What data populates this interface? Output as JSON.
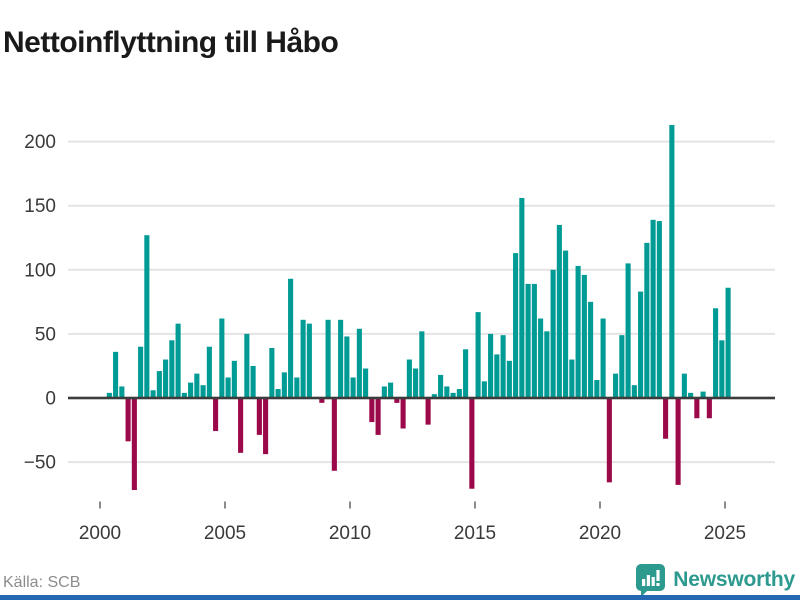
{
  "title": "Nettoinflyttning till Håbo",
  "source": "Källa: SCB",
  "brand": {
    "name": "Newsworthy",
    "icon": "bar-chart-pin-icon"
  },
  "colors": {
    "positive_bar": "#009B94",
    "negative_bar": "#9B094A",
    "grid": "#E4E4E4",
    "zero_axis": "#3C3C3C",
    "tick_label": "#3A3A3A",
    "tick_mark": "#8A8A8A",
    "title_text": "#1A1A1A",
    "source_text": "#8C8C8C",
    "brand_teal": "#2D9A8F",
    "bottom_border": "#2468B2",
    "background": "#FFFFFF"
  },
  "chart_data": {
    "type": "bar",
    "title": "Nettoinflyttning till Håbo",
    "xlabel": "",
    "ylabel": "",
    "grid": "horizontal",
    "legend": "none",
    "yticks": [
      200,
      150,
      100,
      50,
      0,
      -50
    ],
    "xticks": [
      2000,
      2005,
      2010,
      2015,
      2020,
      2025
    ],
    "ylim": [
      -85,
      225
    ],
    "xlim_years": [
      1998.6,
      2027
    ],
    "x": [
      "2000K2",
      "2000K3",
      "2000K4",
      "2001K1",
      "2001K2",
      "2001K3",
      "2001K4",
      "2002K1",
      "2002K2",
      "2002K3",
      "2002K4",
      "2003K1",
      "2003K2",
      "2003K3",
      "2003K4",
      "2004K1",
      "2004K2",
      "2004K3",
      "2004K4",
      "2005K1",
      "2005K2",
      "2005K3",
      "2005K4",
      "2006K1",
      "2006K2",
      "2006K3",
      "2006K4",
      "2007K1",
      "2007K2",
      "2007K3",
      "2007K4",
      "2008K1",
      "2008K2",
      "2008K3",
      "2008K4",
      "2009K1",
      "2009K2",
      "2009K3",
      "2009K4",
      "2010K1",
      "2010K2",
      "2010K3",
      "2010K4",
      "2011K1",
      "2011K2",
      "2011K3",
      "2011K4",
      "2012K1",
      "2012K2",
      "2012K3",
      "2012K4",
      "2013K1",
      "2013K2",
      "2013K3",
      "2013K4",
      "2014K1",
      "2014K2",
      "2014K3",
      "2014K4",
      "2015K1",
      "2015K2",
      "2015K3",
      "2015K4",
      "2016K1",
      "2016K2",
      "2016K3",
      "2016K4",
      "2017K1",
      "2017K2",
      "2017K3",
      "2017K4",
      "2018K1",
      "2018K2",
      "2018K3",
      "2018K4",
      "2019K1",
      "2019K2",
      "2019K3",
      "2019K4",
      "2020K1",
      "2020K2",
      "2020K3",
      "2020K4",
      "2021K1",
      "2021K2",
      "2021K3",
      "2021K4",
      "2022K1",
      "2022K2",
      "2022K3",
      "2022K4",
      "2023K1",
      "2023K2",
      "2023K3",
      "2023K4",
      "2024K1",
      "2024K2",
      "2024K3",
      "2024K4",
      "2025K1"
    ],
    "values": [
      4,
      36,
      9,
      -33,
      -71,
      40,
      127,
      6,
      21,
      30,
      45,
      58,
      4,
      12,
      19,
      10,
      40,
      -25,
      62,
      16,
      29,
      -42,
      50,
      25,
      -28,
      -43,
      39,
      7,
      20,
      93,
      16,
      61,
      58,
      0,
      -3,
      61,
      -56,
      61,
      48,
      16,
      54,
      23,
      -18,
      -28,
      9,
      12,
      -3,
      -23,
      30,
      23,
      52,
      -20,
      3,
      18,
      9,
      4,
      7,
      38,
      -70,
      67,
      13,
      50,
      34,
      49,
      29,
      113,
      156,
      89,
      89,
      62,
      52,
      100,
      135,
      115,
      30,
      103,
      96,
      75,
      14,
      62,
      -65,
      19,
      49,
      105,
      10,
      83,
      121,
      139,
      138,
      -31,
      213,
      -67,
      19,
      4,
      -15,
      5,
      -15,
      70,
      45,
      86
    ]
  }
}
